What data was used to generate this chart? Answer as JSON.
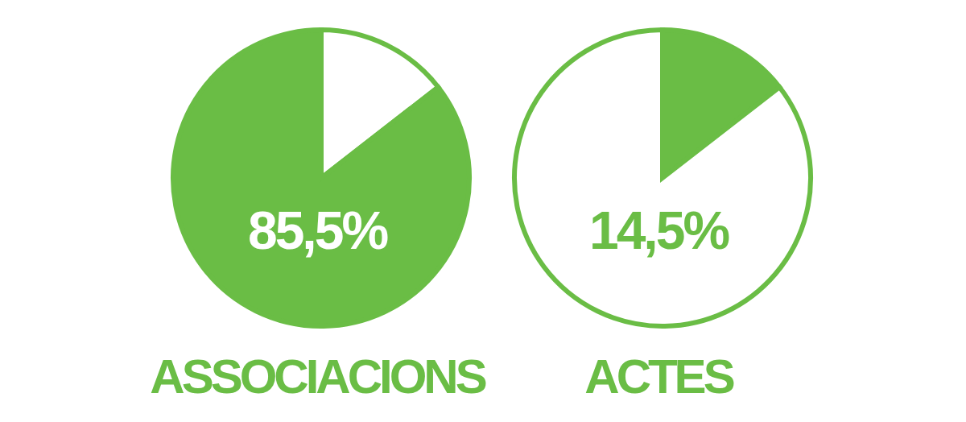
{
  "chart_data": [
    {
      "type": "pie",
      "title": "ASSOCIACIONS",
      "categories": [
        null,
        null
      ],
      "values": [
        14.5,
        85.5
      ],
      "colors": [
        "#ffffff",
        "#6abd45"
      ],
      "annotations": [
        "85,5%"
      ]
    },
    {
      "type": "pie",
      "title": "ACTES",
      "categories": [
        null,
        null
      ],
      "values": [
        14.5,
        85.5
      ],
      "colors": [
        "#6abd45",
        "#ffffff"
      ],
      "annotations": [
        "14,5%"
      ]
    }
  ]
}
